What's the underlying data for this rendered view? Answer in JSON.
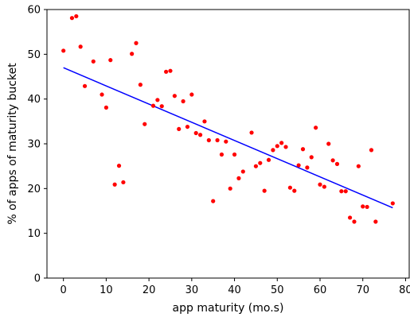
{
  "chart_data": {
    "type": "scatter",
    "xlabel": "app maturity (mo.s)",
    "ylabel": "% of apps of maturity bucket",
    "xlim": [
      -3.85,
      80.85
    ],
    "ylim": [
      0,
      60
    ],
    "xticks": [
      0,
      10,
      20,
      30,
      40,
      50,
      60,
      70,
      80
    ],
    "yticks": [
      0,
      10,
      20,
      30,
      40,
      50,
      60
    ],
    "grid": false,
    "point_color": "#ff0000",
    "line_color": "#0000ff",
    "points": [
      {
        "x": 0,
        "y": 50.8
      },
      {
        "x": 2,
        "y": 58.1
      },
      {
        "x": 3,
        "y": 58.5
      },
      {
        "x": 4,
        "y": 51.7
      },
      {
        "x": 5,
        "y": 42.9
      },
      {
        "x": 7,
        "y": 48.4
      },
      {
        "x": 9,
        "y": 41.0
      },
      {
        "x": 10,
        "y": 38.1
      },
      {
        "x": 11,
        "y": 48.7
      },
      {
        "x": 12,
        "y": 20.9
      },
      {
        "x": 13,
        "y": 25.1
      },
      {
        "x": 14,
        "y": 21.4
      },
      {
        "x": 16,
        "y": 50.1
      },
      {
        "x": 17,
        "y": 52.5
      },
      {
        "x": 18,
        "y": 43.2
      },
      {
        "x": 19,
        "y": 34.4
      },
      {
        "x": 21,
        "y": 38.5
      },
      {
        "x": 22,
        "y": 39.8
      },
      {
        "x": 23,
        "y": 38.4
      },
      {
        "x": 24,
        "y": 46.1
      },
      {
        "x": 25,
        "y": 46.3
      },
      {
        "x": 26,
        "y": 40.7
      },
      {
        "x": 27,
        "y": 33.3
      },
      {
        "x": 28,
        "y": 39.5
      },
      {
        "x": 29,
        "y": 33.8
      },
      {
        "x": 30,
        "y": 41.0
      },
      {
        "x": 31,
        "y": 32.4
      },
      {
        "x": 32,
        "y": 32.0
      },
      {
        "x": 33,
        "y": 35.0
      },
      {
        "x": 34,
        "y": 30.8
      },
      {
        "x": 35,
        "y": 17.2
      },
      {
        "x": 36,
        "y": 30.8
      },
      {
        "x": 37,
        "y": 27.6
      },
      {
        "x": 38,
        "y": 30.5
      },
      {
        "x": 39,
        "y": 20.0
      },
      {
        "x": 40,
        "y": 27.6
      },
      {
        "x": 41,
        "y": 22.3
      },
      {
        "x": 42,
        "y": 23.8
      },
      {
        "x": 44,
        "y": 32.5
      },
      {
        "x": 45,
        "y": 25.0
      },
      {
        "x": 46,
        "y": 25.7
      },
      {
        "x": 47,
        "y": 19.5
      },
      {
        "x": 48,
        "y": 26.4
      },
      {
        "x": 49,
        "y": 28.6
      },
      {
        "x": 50,
        "y": 29.5
      },
      {
        "x": 51,
        "y": 30.2
      },
      {
        "x": 52,
        "y": 29.3
      },
      {
        "x": 53,
        "y": 20.2
      },
      {
        "x": 54,
        "y": 19.5
      },
      {
        "x": 55,
        "y": 25.2
      },
      {
        "x": 56,
        "y": 28.8
      },
      {
        "x": 57,
        "y": 24.7
      },
      {
        "x": 58,
        "y": 27.0
      },
      {
        "x": 59,
        "y": 33.6
      },
      {
        "x": 60,
        "y": 20.9
      },
      {
        "x": 61,
        "y": 20.4
      },
      {
        "x": 62,
        "y": 30.0
      },
      {
        "x": 63,
        "y": 26.3
      },
      {
        "x": 64,
        "y": 25.5
      },
      {
        "x": 65,
        "y": 19.4
      },
      {
        "x": 66,
        "y": 19.4
      },
      {
        "x": 67,
        "y": 13.5
      },
      {
        "x": 68,
        "y": 12.6
      },
      {
        "x": 69,
        "y": 25.0
      },
      {
        "x": 70,
        "y": 16.0
      },
      {
        "x": 71,
        "y": 15.9
      },
      {
        "x": 72,
        "y": 28.6
      },
      {
        "x": 73,
        "y": 12.6
      },
      {
        "x": 77,
        "y": 16.7
      }
    ],
    "fit_line": [
      {
        "x": 0,
        "y": 47.0
      },
      {
        "x": 77,
        "y": 15.7
      }
    ]
  }
}
